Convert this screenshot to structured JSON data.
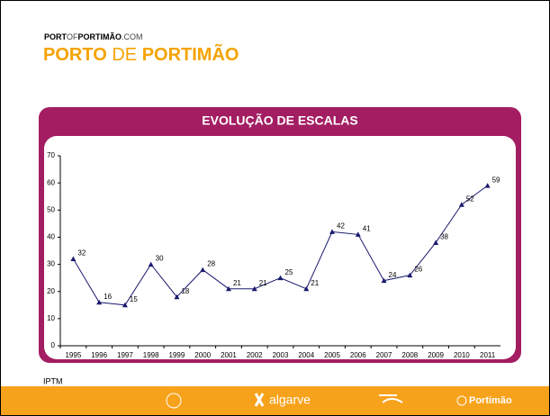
{
  "header": {
    "site_parts": [
      "PORT",
      "OF",
      "PORTIMÃO",
      ".COM"
    ],
    "title_parts": [
      "PORTO",
      "DE",
      "PORTIMÃO"
    ]
  },
  "chart_data": {
    "type": "line",
    "title": "EVOLUÇÃO DE ESCALAS",
    "categories": [
      "1995",
      "1996",
      "1997",
      "1998",
      "1999",
      "2000",
      "2001",
      "2002",
      "2003",
      "2004",
      "2005",
      "2006",
      "2007",
      "2008",
      "2009",
      "2010",
      "2011"
    ],
    "values": [
      32,
      16,
      15,
      30,
      18,
      28,
      21,
      21,
      25,
      21,
      42,
      41,
      24,
      26,
      38,
      52,
      59
    ],
    "color": "#1a1a6e",
    "ylim": [
      0,
      70
    ],
    "yticks": [
      0,
      10,
      20,
      30,
      40,
      50,
      60,
      70
    ],
    "grid": false
  },
  "source": "IPTM",
  "footer": {
    "items": [
      "algarve",
      "Portimão"
    ]
  }
}
